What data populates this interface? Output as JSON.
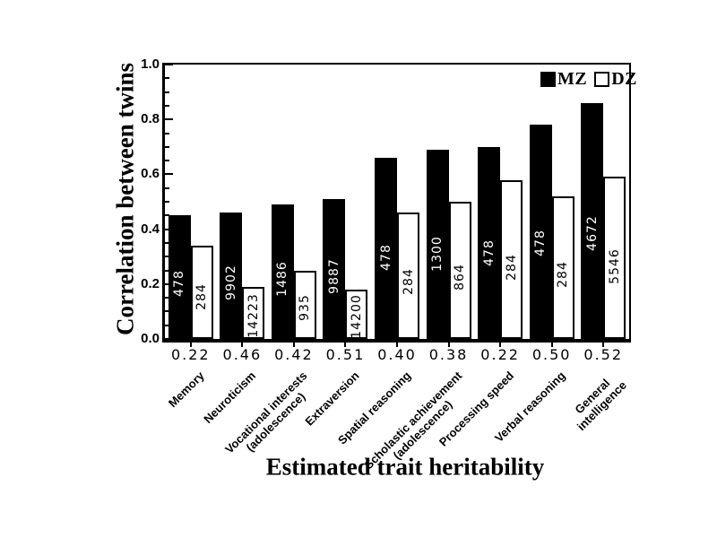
{
  "colors": {
    "foreground": "#000000",
    "background": "#ffffff",
    "mz_fill": "#000000",
    "dz_fill": "#ffffff"
  },
  "legend": {
    "mz_label": "MZ",
    "dz_label": "DZ"
  },
  "chart_data": {
    "type": "bar",
    "title": "",
    "xlabel": "Estimated trait heritability",
    "ylabel": "Correlation between twins",
    "ylim": [
      0,
      1.0
    ],
    "y_major_tick_step": 0.2,
    "y_minor_tick_step": 0.05,
    "ytick_labels": [
      "0.0",
      "0.2",
      "0.4",
      "0.6",
      "0.8",
      "1.0"
    ],
    "grid": false,
    "legend_position": "top-right-inside",
    "categories": [
      "Memory",
      "Neuroticism",
      "Vocational interests\n(adolescence)",
      "Extraversion",
      "Spatial reasoning",
      "Scholastic achievement\n(adolescence)",
      "Processing speed",
      "Verbal reasoning",
      "General\nintelligence"
    ],
    "heritability_labels": [
      "0.22",
      "0.46",
      "0.42",
      "0.51",
      "0.40",
      "0.38",
      "0.22",
      "0.50",
      "0.52"
    ],
    "series": [
      {
        "name": "MZ",
        "color": "#000000",
        "label_color": "#ffffff",
        "values": [
          0.45,
          0.46,
          0.49,
          0.51,
          0.66,
          0.69,
          0.7,
          0.78,
          0.86
        ],
        "bar_labels": [
          "478",
          "9902",
          "1486",
          "9887",
          "478",
          "1300",
          "478",
          "478",
          "4672"
        ]
      },
      {
        "name": "DZ",
        "color": "#ffffff",
        "label_color": "#000000",
        "values": [
          0.34,
          0.19,
          0.25,
          0.18,
          0.46,
          0.5,
          0.58,
          0.52,
          0.59
        ],
        "bar_labels": [
          "284",
          "14223",
          "935",
          "14200",
          "284",
          "864",
          "284",
          "284",
          "5546"
        ]
      }
    ]
  }
}
